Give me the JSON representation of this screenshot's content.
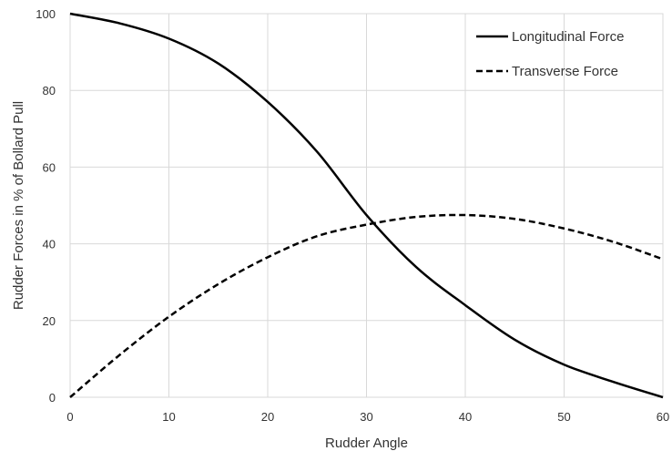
{
  "chart_data": {
    "type": "line",
    "title": "",
    "xlabel": "Rudder Angle",
    "ylabel": "Rudder Forces in % of Bollard Pull",
    "xlim": [
      0,
      60
    ],
    "ylim": [
      0,
      100
    ],
    "x_ticks": [
      0,
      10,
      20,
      30,
      40,
      50,
      60
    ],
    "y_ticks": [
      0,
      20,
      40,
      60,
      80,
      100
    ],
    "grid": true,
    "legend": "top-right",
    "series": [
      {
        "name": "Longitudinal Force",
        "style": "solid",
        "color": "#000000",
        "x": [
          0,
          5,
          10,
          15,
          20,
          25,
          30,
          35,
          40,
          45,
          50,
          55,
          60
        ],
        "y": [
          100,
          97.5,
          93.5,
          87,
          77,
          64,
          47.5,
          34,
          24,
          15,
          8.5,
          4,
          0
        ]
      },
      {
        "name": "Transverse Force",
        "style": "dashed",
        "color": "#000000",
        "x": [
          0,
          5,
          10,
          15,
          20,
          25,
          30,
          35,
          40,
          45,
          50,
          55,
          60
        ],
        "y": [
          0,
          11,
          21,
          29.5,
          36.5,
          42,
          45,
          47,
          47.5,
          46.5,
          44,
          40.5,
          36
        ]
      }
    ]
  }
}
